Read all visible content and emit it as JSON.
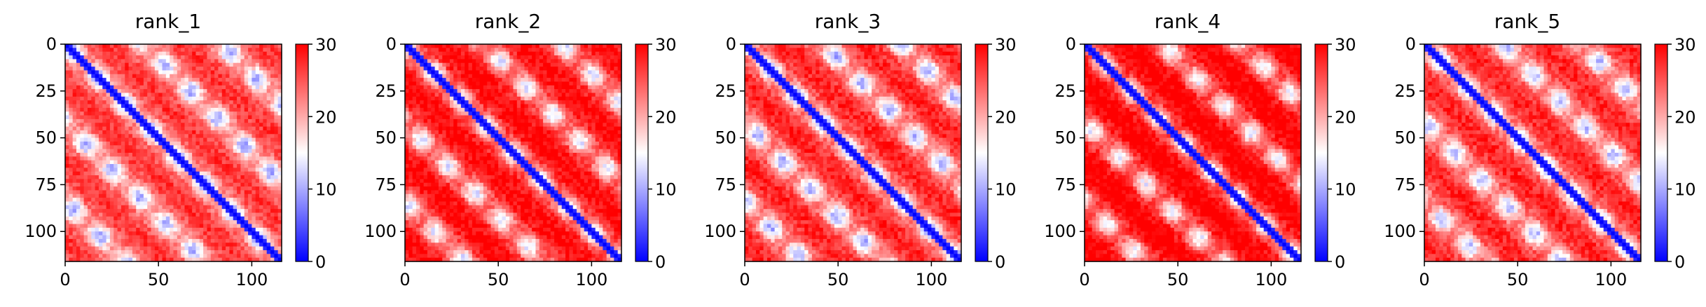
{
  "chart_data": [
    {
      "type": "heatmap",
      "title": "rank_1",
      "matrix_size": 116,
      "x_ticks": [
        0,
        50,
        100
      ],
      "y_ticks": [
        0,
        25,
        50,
        75,
        100
      ],
      "colorbar": {
        "min": 0,
        "max": 30,
        "ticks": [
          0,
          10,
          20,
          30
        ],
        "colormap": [
          "#0000ff",
          "#ffffff",
          "#ff0000"
        ]
      },
      "pattern": {
        "diagonal_low": 0,
        "band_period": 42,
        "band_low": 10,
        "background": 21
      }
    },
    {
      "type": "heatmap",
      "title": "rank_2",
      "matrix_size": 116,
      "x_ticks": [
        0,
        50,
        100
      ],
      "y_ticks": [
        0,
        25,
        50,
        75,
        100
      ],
      "colorbar": {
        "min": 0,
        "max": 30,
        "ticks": [
          0,
          10,
          20,
          30
        ],
        "colormap": [
          "#0000ff",
          "#ffffff",
          "#ff0000"
        ]
      },
      "pattern": {
        "diagonal_low": 0,
        "band_period": 42,
        "band_low": 13,
        "background": 24
      }
    },
    {
      "type": "heatmap",
      "title": "rank_3",
      "matrix_size": 116,
      "x_ticks": [
        0,
        50,
        100
      ],
      "y_ticks": [
        0,
        25,
        50,
        75,
        100
      ],
      "colorbar": {
        "min": 0,
        "max": 30,
        "ticks": [
          0,
          10,
          20,
          30
        ],
        "colormap": [
          "#0000ff",
          "#ffffff",
          "#ff0000"
        ]
      },
      "pattern": {
        "diagonal_low": 0,
        "band_period": 42,
        "band_low": 10,
        "background": 22
      }
    },
    {
      "type": "heatmap",
      "title": "rank_4",
      "matrix_size": 116,
      "x_ticks": [
        0,
        50,
        100
      ],
      "y_ticks": [
        0,
        25,
        50,
        75,
        100
      ],
      "colorbar": {
        "min": 0,
        "max": 30,
        "ticks": [
          0,
          10,
          20,
          30
        ],
        "colormap": [
          "#0000ff",
          "#ffffff",
          "#ff0000"
        ]
      },
      "pattern": {
        "diagonal_low": 0,
        "band_period": 42,
        "band_low": 14,
        "background": 25
      }
    },
    {
      "type": "heatmap",
      "title": "rank_5",
      "matrix_size": 116,
      "x_ticks": [
        0,
        50,
        100
      ],
      "y_ticks": [
        0,
        25,
        50,
        75,
        100
      ],
      "colorbar": {
        "min": 0,
        "max": 30,
        "ticks": [
          0,
          10,
          20,
          30
        ],
        "colormap": [
          "#0000ff",
          "#ffffff",
          "#ff0000"
        ]
      },
      "pattern": {
        "diagonal_low": 0,
        "band_period": 42,
        "band_low": 11,
        "background": 22
      }
    }
  ]
}
